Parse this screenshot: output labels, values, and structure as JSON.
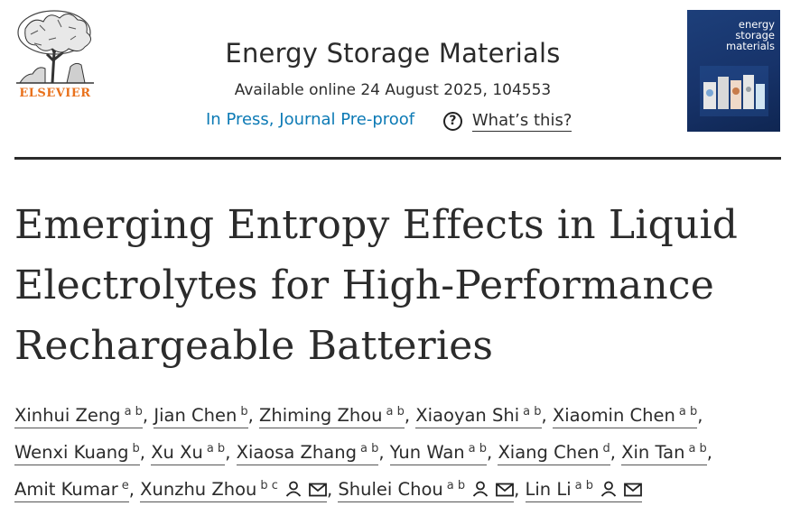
{
  "publisher": {
    "name": "ELSEVIER"
  },
  "journal": {
    "name": "Energy Storage Materials",
    "availability": "Available online 24 August 2025, 104553",
    "status": "In Press, Journal Pre-proof",
    "help_label": "What’s this?",
    "cover_lines": [
      "energy",
      "storage",
      "materials"
    ]
  },
  "article": {
    "title": "Emerging Entropy Effects in Liquid Electrolytes for High-Performance Rechargeable Batteries"
  },
  "authors": [
    {
      "name": "Xinhui Zeng",
      "aff": "a b"
    },
    {
      "name": "Jian Chen",
      "aff": "b"
    },
    {
      "name": "Zhiming Zhou",
      "aff": "a b"
    },
    {
      "name": "Xiaoyan Shi",
      "aff": "a b"
    },
    {
      "name": "Xiaomin Chen",
      "aff": "a b"
    },
    {
      "name": "Wenxi Kuang",
      "aff": "b"
    },
    {
      "name": "Xu Xu",
      "aff": "a b"
    },
    {
      "name": "Xiaosa Zhang",
      "aff": "a b"
    },
    {
      "name": "Yun Wan",
      "aff": "a b"
    },
    {
      "name": "Xiang Chen",
      "aff": "d"
    },
    {
      "name": "Xin Tan",
      "aff": "a b"
    },
    {
      "name": "Amit Kumar",
      "aff": "e"
    },
    {
      "name": "Xunzhu Zhou",
      "aff": "b c"
    },
    {
      "name": "Shulei Chou",
      "aff": "a b"
    },
    {
      "name": "Lin Li",
      "aff": "a b"
    }
  ],
  "colors": {
    "accent": "#0c7ab5",
    "elsevier": "#e9711c",
    "cover": "#1d3f7a"
  }
}
